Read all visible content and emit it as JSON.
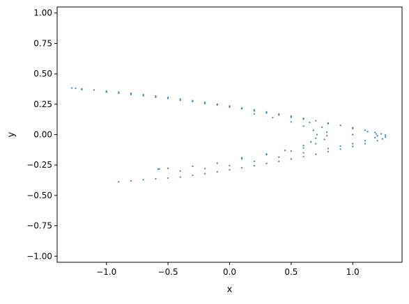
{
  "chart_data": {
    "type": "scatter",
    "title": "",
    "xlabel": "x",
    "ylabel": "y",
    "xlim": [
      -1.4,
      1.4
    ],
    "ylim": [
      -1.05,
      1.05
    ],
    "x_ticks": [
      -1.0,
      -0.5,
      0.0,
      0.5,
      1.0
    ],
    "x_tick_labels": [
      "−1.0",
      "−0.5",
      "0.0",
      "0.5",
      "1.0"
    ],
    "y_ticks": [
      -1.0,
      -0.75,
      -0.5,
      -0.25,
      0.0,
      0.25,
      0.5,
      0.75,
      1.0
    ],
    "y_tick_labels": [
      "−1.00",
      "−0.75",
      "−0.50",
      "−0.25",
      "0.00",
      "0.25",
      "0.50",
      "0.75",
      "1.00"
    ],
    "grid": false,
    "legend": false,
    "marker_color": "#1f77b4",
    "series": [
      {
        "points": [
          [
            -1.28,
            0.383
          ],
          [
            -1.25,
            0.381
          ],
          [
            -1.2,
            0.376
          ],
          [
            -1.1,
            0.367
          ],
          [
            -1.0,
            0.358
          ],
          [
            -0.9,
            0.349
          ],
          [
            -0.8,
            0.339
          ],
          [
            -0.7,
            0.328
          ],
          [
            -0.6,
            0.317
          ],
          [
            -0.5,
            0.305
          ],
          [
            -0.4,
            0.292
          ],
          [
            -0.3,
            0.279
          ],
          [
            -0.2,
            0.265
          ],
          [
            -0.1,
            0.25
          ],
          [
            0.0,
            0.235
          ],
          [
            0.1,
            0.219
          ],
          [
            0.2,
            0.203
          ],
          [
            0.3,
            0.186
          ],
          [
            0.4,
            0.169
          ],
          [
            0.5,
            0.151
          ],
          [
            0.6,
            0.133
          ],
          [
            0.7,
            0.114
          ],
          [
            0.8,
            0.095
          ],
          [
            0.9,
            0.076
          ],
          [
            1.0,
            0.056
          ],
          [
            1.1,
            0.036
          ],
          [
            1.18,
            0.018
          ],
          [
            1.23,
            0.005
          ],
          [
            1.265,
            -0.005
          ],
          [
            1.265,
            -0.02
          ],
          [
            1.24,
            -0.035
          ],
          [
            1.2,
            -0.05
          ],
          [
            1.1,
            -0.075
          ],
          [
            1.0,
            -0.098
          ],
          [
            0.9,
            -0.12
          ],
          [
            0.8,
            -0.141
          ],
          [
            0.7,
            -0.162
          ],
          [
            0.6,
            -0.182
          ],
          [
            0.5,
            -0.201
          ],
          [
            0.4,
            -0.22
          ],
          [
            0.3,
            -0.238
          ],
          [
            0.2,
            -0.256
          ],
          [
            0.1,
            -0.273
          ],
          [
            0.0,
            -0.29
          ],
          [
            -0.1,
            -0.306
          ],
          [
            -0.2,
            -0.321
          ],
          [
            -0.3,
            -0.336
          ],
          [
            -0.4,
            -0.35
          ],
          [
            -0.5,
            -0.357
          ],
          [
            -0.6,
            -0.364
          ],
          [
            -0.7,
            -0.372
          ],
          [
            -0.8,
            -0.38
          ],
          [
            -0.9,
            -0.388
          ],
          [
            -1.2,
            0.37
          ],
          [
            -1.0,
            0.35
          ],
          [
            -0.8,
            0.33
          ],
          [
            -0.6,
            0.307
          ],
          [
            -0.4,
            0.282
          ],
          [
            -0.2,
            0.255
          ],
          [
            0.0,
            0.226
          ],
          [
            0.2,
            0.195
          ],
          [
            0.4,
            0.162
          ],
          [
            0.6,
            0.128
          ],
          [
            0.8,
            0.09
          ],
          [
            1.0,
            0.05
          ],
          [
            1.12,
            0.025
          ],
          [
            1.19,
            0.005
          ],
          [
            1.2,
            -0.01
          ],
          [
            1.18,
            -0.025
          ],
          [
            1.1,
            -0.05
          ],
          [
            1.0,
            -0.075
          ],
          [
            0.9,
            -0.095
          ],
          [
            0.8,
            -0.114
          ],
          [
            0.6,
            -0.15
          ],
          [
            0.4,
            -0.185
          ],
          [
            0.2,
            -0.22
          ],
          [
            0.0,
            -0.255
          ],
          [
            -0.2,
            -0.28
          ],
          [
            -0.4,
            -0.3
          ],
          [
            -0.58,
            -0.285
          ],
          [
            -0.9,
            0.34
          ],
          [
            -0.7,
            0.32
          ],
          [
            -0.5,
            0.298
          ],
          [
            -0.3,
            0.272
          ],
          [
            -0.1,
            0.244
          ],
          [
            0.1,
            0.212
          ],
          [
            0.3,
            0.178
          ],
          [
            0.5,
            0.142
          ],
          [
            0.65,
            0.1
          ],
          [
            0.75,
            0.06
          ],
          [
            0.79,
            0.02
          ],
          [
            0.79,
            -0.01
          ],
          [
            0.77,
            -0.04
          ],
          [
            0.7,
            -0.075
          ],
          [
            0.6,
            -0.11
          ],
          [
            0.5,
            -0.135
          ],
          [
            0.3,
            -0.16
          ],
          [
            0.1,
            -0.19
          ],
          [
            0.2,
            0.17
          ],
          [
            0.35,
            0.14
          ],
          [
            0.5,
            0.105
          ],
          [
            0.6,
            0.07
          ],
          [
            0.68,
            0.035
          ],
          [
            0.71,
            0.0
          ],
          [
            0.7,
            -0.03
          ],
          [
            0.66,
            -0.06
          ],
          [
            0.6,
            -0.09
          ],
          [
            0.45,
            -0.13
          ],
          [
            0.3,
            -0.165
          ],
          [
            0.1,
            -0.2
          ],
          [
            -0.1,
            -0.235
          ],
          [
            -0.3,
            -0.26
          ],
          [
            -0.5,
            -0.278
          ],
          [
            -0.57,
            -0.282
          ],
          [
            1.0,
            0.0
          ]
        ]
      }
    ]
  }
}
